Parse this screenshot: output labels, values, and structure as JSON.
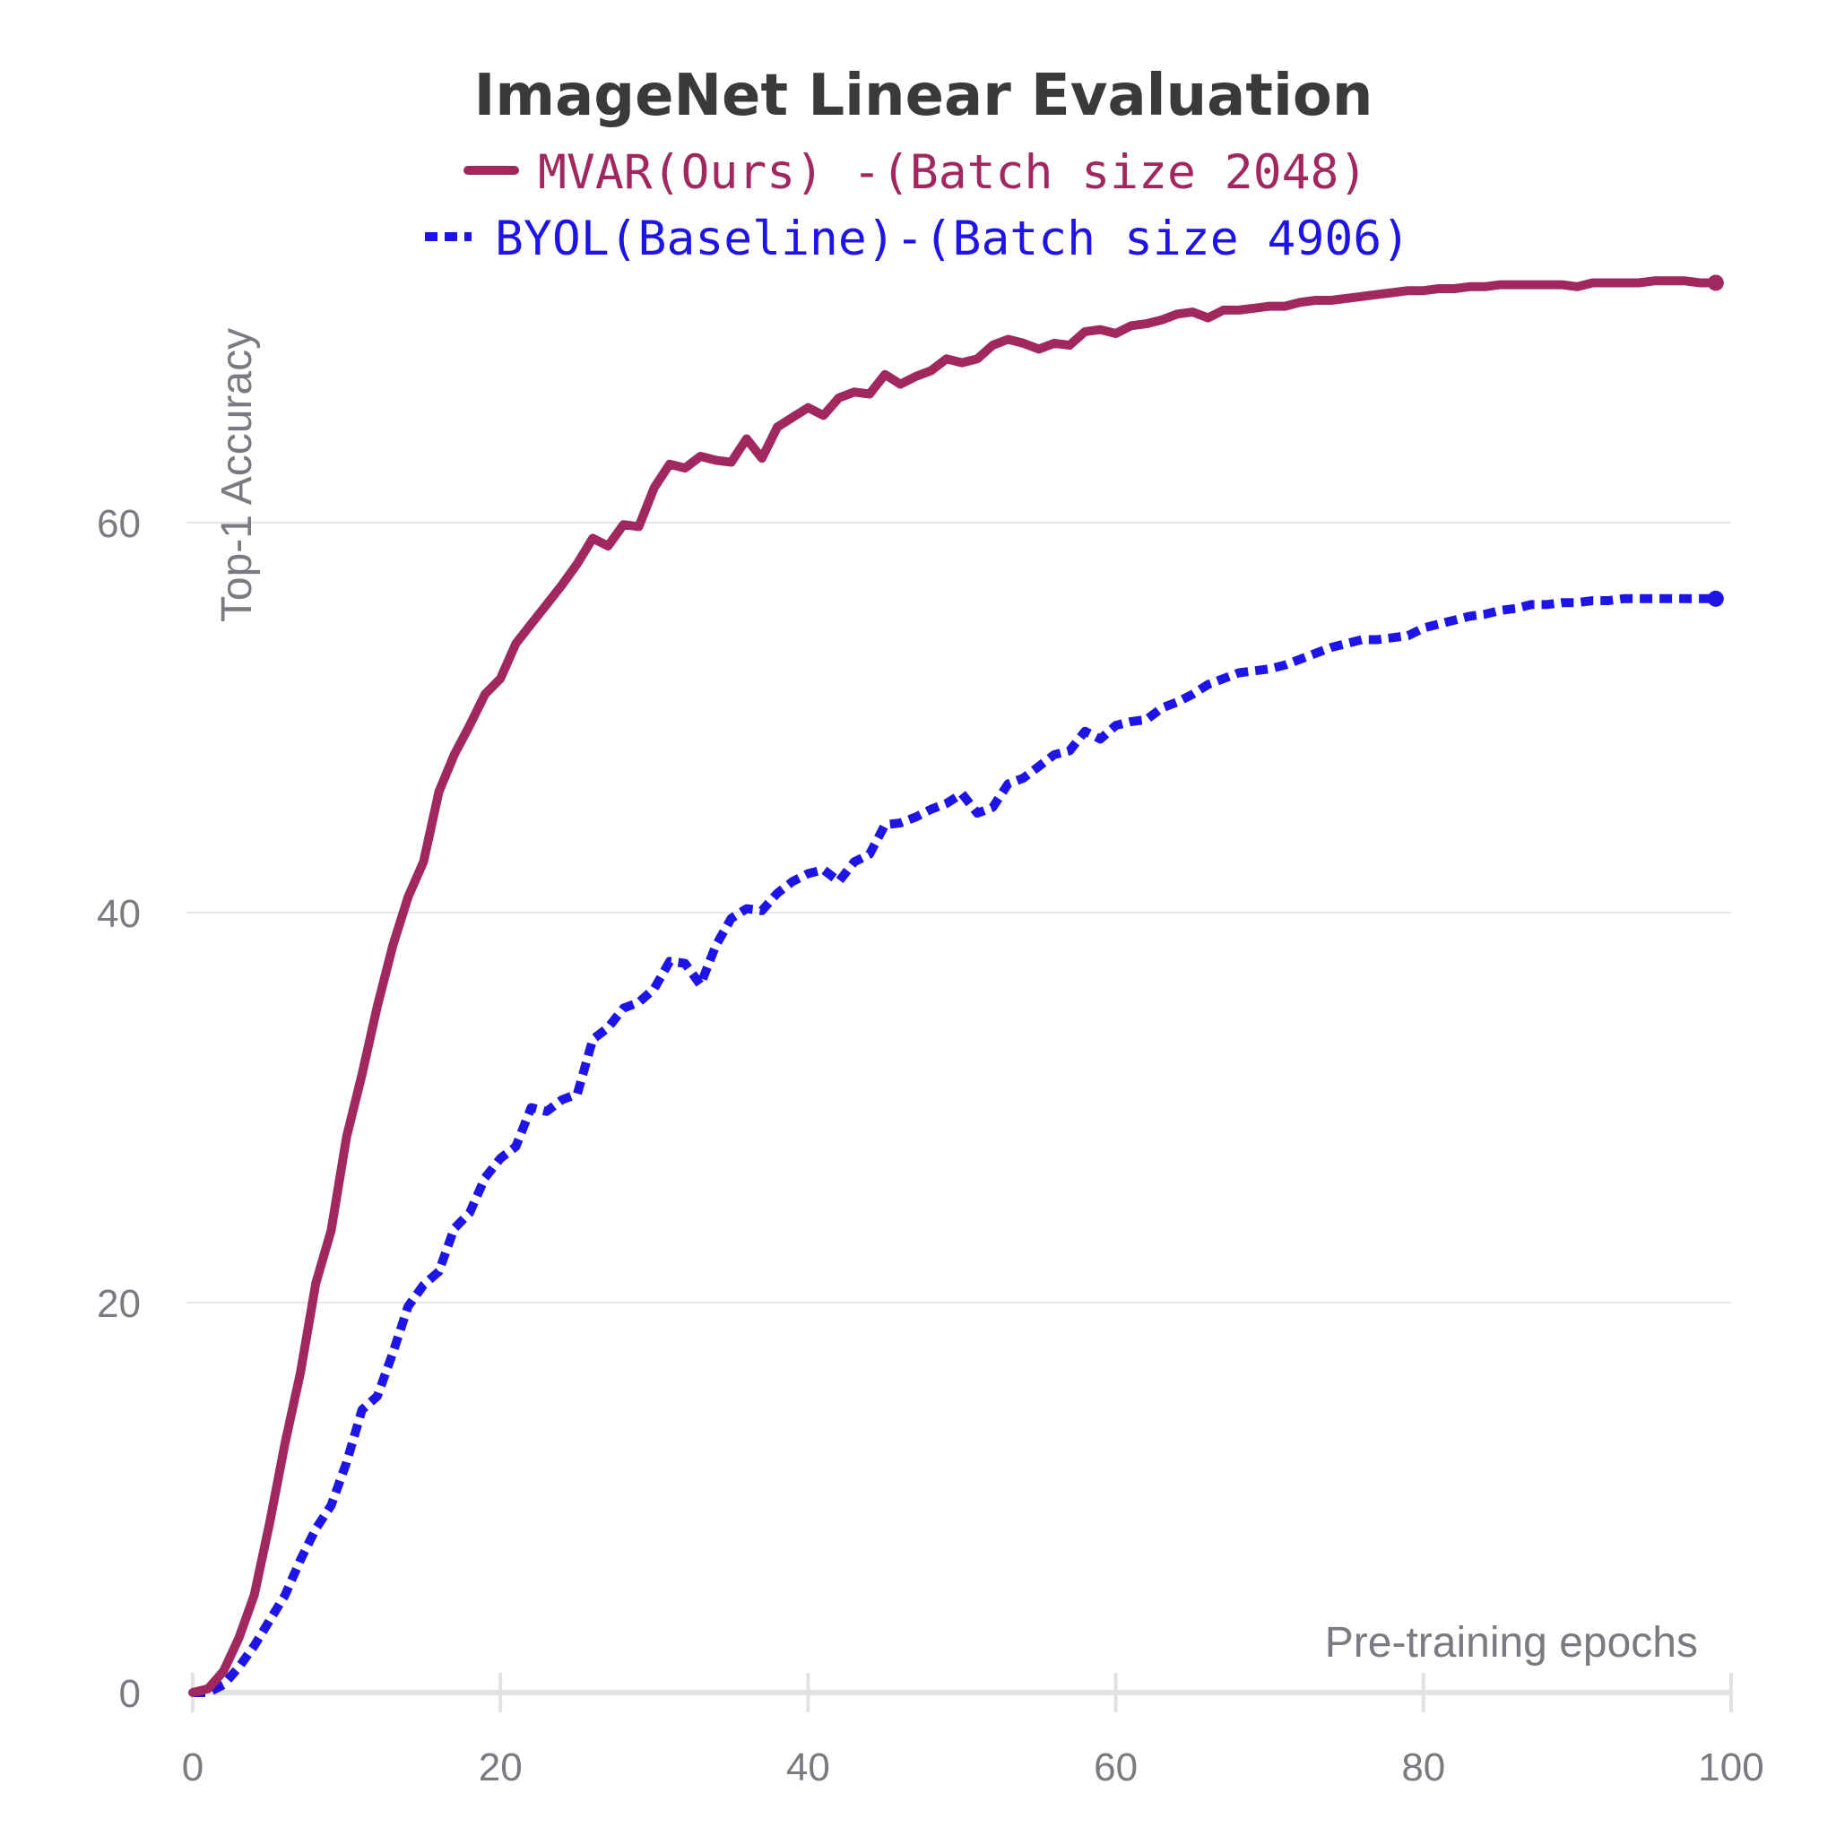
{
  "chart_data": {
    "type": "line",
    "title": "ImageNet Linear Evaluation",
    "xlabel": "Pre-training epochs",
    "ylabel": "Top-1 Accuracy",
    "xlim": [
      0,
      100
    ],
    "ylim": [
      0,
      72
    ],
    "x_ticks": [
      "0",
      "20",
      "40",
      "60",
      "80",
      "100"
    ],
    "y_ticks": [
      "0",
      "20",
      "40",
      "60"
    ],
    "grid": "horizontal",
    "legend_position": "top-center",
    "series": [
      {
        "name": "MVAR(Ours) -(Batch size 2048)",
        "color": "#a0285f",
        "style": "solid",
        "x": [
          0,
          1,
          2,
          3,
          4,
          5,
          6,
          7,
          8,
          9,
          10,
          11,
          12,
          13,
          14,
          15,
          16,
          17,
          18,
          19,
          20,
          21,
          22,
          23,
          24,
          25,
          26,
          27,
          28,
          29,
          30,
          31,
          32,
          33,
          34,
          35,
          36,
          37,
          38,
          39,
          40,
          41,
          42,
          43,
          44,
          45,
          46,
          47,
          48,
          49,
          50,
          51,
          52,
          53,
          54,
          55,
          56,
          57,
          58,
          59,
          60,
          61,
          62,
          63,
          64,
          65,
          66,
          67,
          68,
          69,
          70,
          71,
          72,
          73,
          74,
          75,
          76,
          77,
          78,
          79,
          80,
          81,
          82,
          83,
          84,
          85,
          86,
          87,
          88,
          89,
          90,
          91,
          92,
          93,
          94,
          95,
          96,
          97,
          98,
          99
        ],
        "y": [
          0,
          0.2,
          1.1,
          2.8,
          5,
          8.7,
          12.8,
          16.4,
          21,
          23.7,
          28.5,
          31.7,
          35.2,
          38.3,
          40.8,
          42.6,
          46.2,
          48.1,
          49.6,
          51.2,
          52,
          53.8,
          54.8,
          55.8,
          56.8,
          57.9,
          59.2,
          58.8,
          59.9,
          59.8,
          61.8,
          63,
          62.8,
          63.4,
          63.2,
          63.1,
          64.3,
          63.3,
          64.9,
          65.4,
          65.9,
          65.5,
          66.4,
          66.7,
          66.6,
          67.6,
          67.1,
          67.5,
          67.8,
          68.4,
          68.2,
          68.4,
          69.1,
          69.4,
          69.2,
          68.9,
          69.2,
          69.1,
          69.8,
          69.9,
          69.7,
          70.1,
          70.2,
          70.4,
          70.7,
          70.8,
          70.5,
          70.9,
          70.9,
          71,
          71.1,
          71.1,
          71.3,
          71.4,
          71.4,
          71.5,
          71.6,
          71.7,
          71.8,
          71.9,
          71.9,
          72,
          72,
          72.1,
          72.1,
          72.2,
          72.2,
          72.2,
          72.2,
          72.2,
          72.1,
          72.3,
          72.3,
          72.3,
          72.3,
          72.4,
          72.4,
          72.4,
          72.3,
          72.3
        ]
      },
      {
        "name": "BYOL(Baseline)-(Batch size 4906)",
        "color": "#1f14e6",
        "style": "dashed",
        "x": [
          0,
          1,
          2,
          3,
          4,
          5,
          6,
          7,
          8,
          9,
          10,
          11,
          12,
          13,
          14,
          15,
          16,
          17,
          18,
          19,
          20,
          21,
          22,
          23,
          24,
          25,
          26,
          27,
          28,
          29,
          30,
          31,
          32,
          33,
          34,
          35,
          36,
          37,
          38,
          39,
          40,
          41,
          42,
          43,
          44,
          45,
          46,
          47,
          48,
          49,
          50,
          51,
          52,
          53,
          54,
          55,
          56,
          57,
          58,
          59,
          60,
          61,
          62,
          63,
          64,
          65,
          66,
          67,
          68,
          69,
          70,
          71,
          72,
          73,
          74,
          75,
          76,
          77,
          78,
          79,
          80,
          81,
          82,
          83,
          84,
          85,
          86,
          87,
          88,
          89,
          90,
          91,
          92,
          93,
          94,
          95,
          96,
          97,
          98,
          99
        ],
        "y": [
          0,
          0,
          0.4,
          1.3,
          2.4,
          3.7,
          5,
          6.8,
          8.4,
          9.6,
          11.8,
          14.5,
          15.2,
          17.4,
          19.8,
          20.9,
          21.6,
          23.8,
          24.6,
          26.4,
          27.4,
          28,
          30,
          29.8,
          30.4,
          30.7,
          33.5,
          34.1,
          35.1,
          35.4,
          36.1,
          37.5,
          37.4,
          36.3,
          38.3,
          39.7,
          40.2,
          40.1,
          41,
          41.6,
          42,
          42.2,
          41.6,
          42.6,
          43,
          44.5,
          44.6,
          44.9,
          45.3,
          45.6,
          46.1,
          45.1,
          45.4,
          46.6,
          46.9,
          47.5,
          48.1,
          48.3,
          49.3,
          48.9,
          49.6,
          49.8,
          49.9,
          50.5,
          50.8,
          51.2,
          51.7,
          52,
          52.3,
          52.4,
          52.5,
          52.7,
          53,
          53.3,
          53.6,
          53.8,
          54,
          54,
          54.1,
          54.2,
          54.6,
          54.8,
          55,
          55.2,
          55.3,
          55.5,
          55.6,
          55.8,
          55.8,
          55.9,
          55.9,
          56,
          56,
          56.1,
          56.1,
          56.1,
          56.1,
          56.1,
          56.1,
          56.1
        ]
      }
    ]
  }
}
